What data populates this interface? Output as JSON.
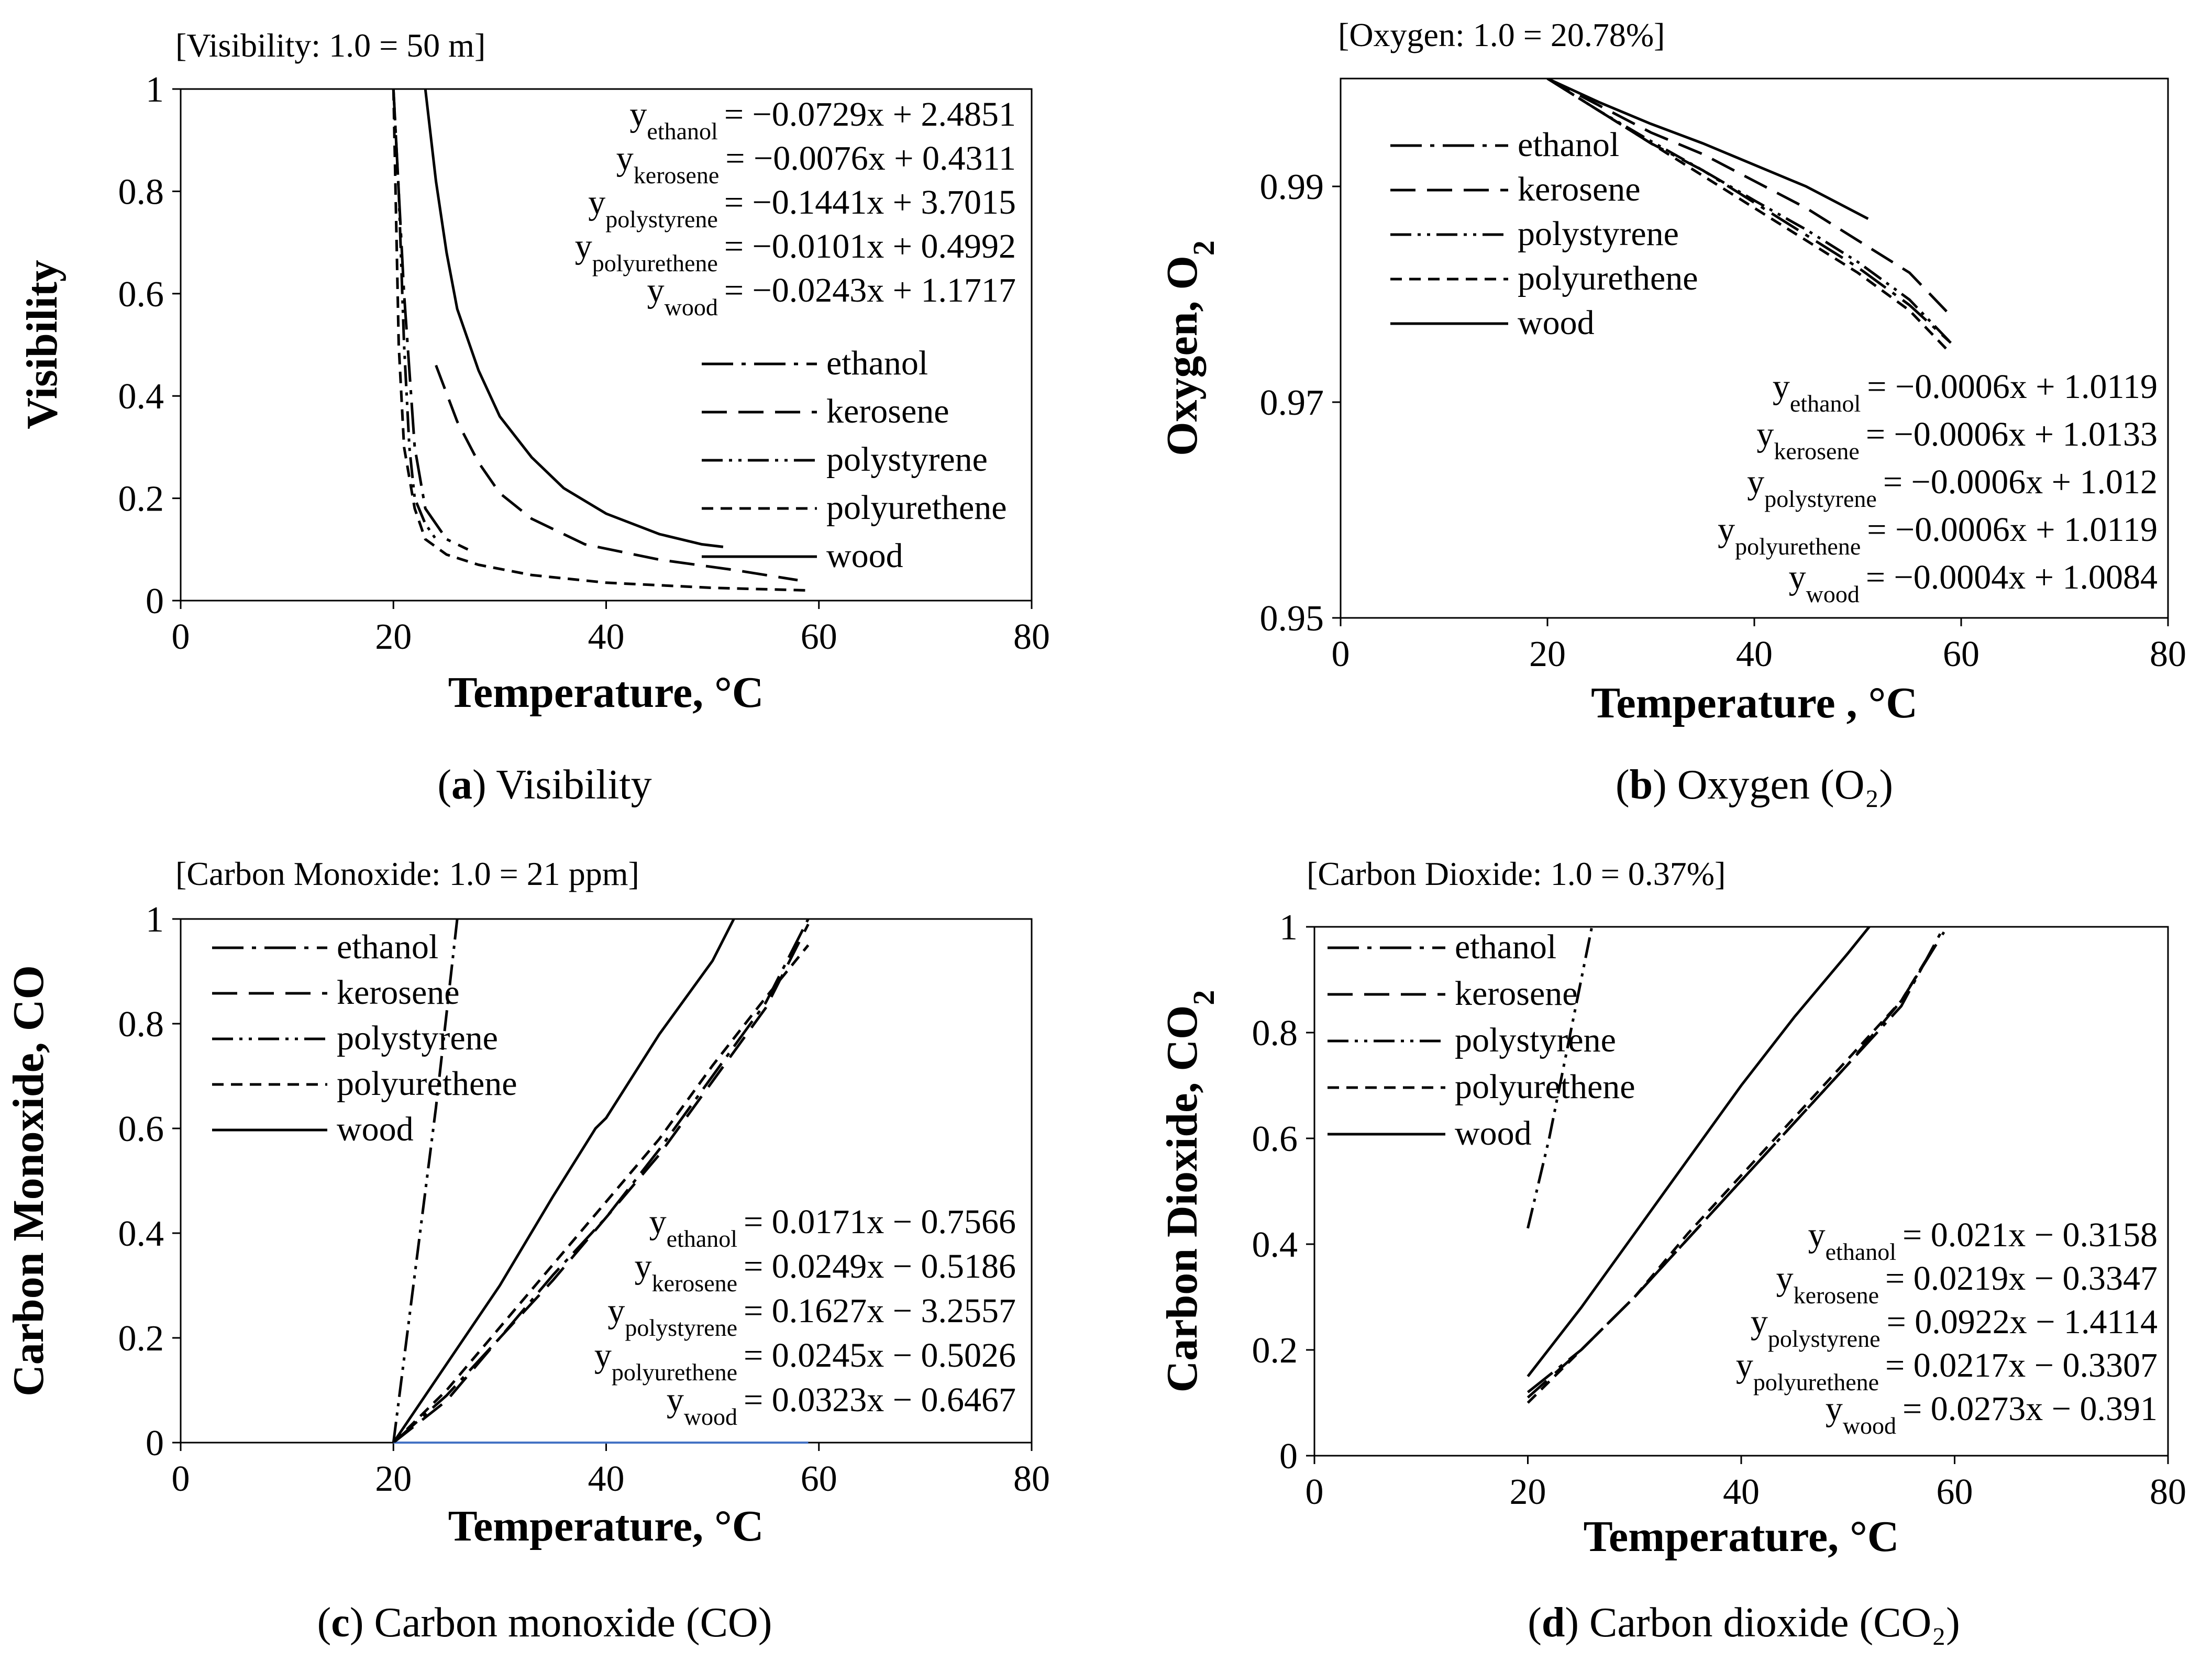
{
  "figure": {
    "panels": [
      {
        "id": "a",
        "note": "[Visibility: 1.0 = 50 m]",
        "caption_letter": "a",
        "caption_text": "Visibility",
        "xlabel": "Temperature, °C",
        "ylabel": "Visibility",
        "legend": [
          "ethanol",
          "kerosene",
          "polystyrene",
          "polyurethene",
          "wood"
        ],
        "equations": [
          {
            "sub": "ethanol",
            "text": "= −0.0729x + 2.4851"
          },
          {
            "sub": "kerosene",
            "text": "= −0.0076x + 0.4311"
          },
          {
            "sub": "polystyrene",
            "text": "= −0.1441x + 3.7015"
          },
          {
            "sub": "polyurethene",
            "text": "= −0.0101x + 0.4992"
          },
          {
            "sub": "wood",
            "text": "= −0.0243x + 1.1717"
          }
        ]
      },
      {
        "id": "b",
        "note": "[Oxygen: 1.0 = 20.78%]",
        "caption_letter": "b",
        "caption_text": "Oxygen (O₂)",
        "xlabel": "Temperature , °C",
        "ylabel": "Oxygen, O",
        "ylabel_sub": "2",
        "legend": [
          "ethanol",
          "kerosene",
          "polystyrene",
          "polyurethene",
          "wood"
        ],
        "equations": [
          {
            "sub": "ethanol",
            "text": "= −0.0006x + 1.0119"
          },
          {
            "sub": "kerosene",
            "text": "= −0.0006x + 1.0133"
          },
          {
            "sub": "polystyrene",
            "text": "= −0.0006x + 1.012"
          },
          {
            "sub": "polyurethene",
            "text": "= −0.0006x + 1.0119"
          },
          {
            "sub": "wood",
            "text": "= −0.0004x + 1.0084"
          }
        ]
      },
      {
        "id": "c",
        "note": "[Carbon Monoxide: 1.0 = 21 ppm]",
        "caption_letter": "c",
        "caption_text": "Carbon monoxide (CO)",
        "xlabel": "Temperature, °C",
        "ylabel": "Carbon Monoxide, CO",
        "legend": [
          "ethanol",
          "kerosene",
          "polystyrene",
          "polyurethene",
          "wood"
        ],
        "equations": [
          {
            "sub": "ethanol",
            "text": "= 0.0171x − 0.7566"
          },
          {
            "sub": "kerosene",
            "text": "= 0.0249x − 0.5186"
          },
          {
            "sub": "polystyrene",
            "text": "= 0.1627x − 3.2557"
          },
          {
            "sub": "polyurethene",
            "text": "= 0.0245x − 0.5026"
          },
          {
            "sub": "wood",
            "text": "= 0.0323x − 0.6467"
          }
        ]
      },
      {
        "id": "d",
        "note": "[Carbon Dioxide: 1.0 = 0.37%]",
        "caption_letter": "d",
        "caption_text": "Carbon dioxide (CO₂)",
        "xlabel": "Temperature, °C",
        "ylabel": "Carbon Dioxide, CO",
        "ylabel_sub": "2",
        "legend": [
          "ethanol",
          "kerosene",
          "polystyrene",
          "polyurethene",
          "wood"
        ],
        "equations": [
          {
            "sub": "ethanol",
            "text": "= 0.021x − 0.3158"
          },
          {
            "sub": "kerosene",
            "text": "= 0.0219x − 0.3347"
          },
          {
            "sub": "polystyrene",
            "text": "= 0.0922x − 1.4114"
          },
          {
            "sub": "polyurethene",
            "text": "= 0.0217x − 0.3307"
          },
          {
            "sub": "wood",
            "text": "= 0.0273x − 0.391"
          }
        ]
      }
    ]
  },
  "chart_data": [
    {
      "type": "line",
      "panel": "a",
      "xlim": [
        0,
        80
      ],
      "ylim": [
        0,
        1
      ],
      "xticks": [
        "0",
        "20",
        "40",
        "60",
        "80"
      ],
      "yticks": [
        "0",
        "0.2",
        "0.4",
        "0.6",
        "0.8",
        "1"
      ],
      "series": [
        {
          "name": "ethanol",
          "points": [
            [
              20,
              1
            ],
            [
              21,
              0.6
            ],
            [
              22,
              0.3
            ],
            [
              23,
              0.18
            ],
            [
              25,
              0.12
            ],
            [
              27,
              0.1
            ]
          ]
        },
        {
          "name": "kerosene",
          "points": [
            [
              24,
              0.46
            ],
            [
              26,
              0.35
            ],
            [
              28,
              0.27
            ],
            [
              30,
              0.21
            ],
            [
              33,
              0.16
            ],
            [
              38,
              0.11
            ],
            [
              45,
              0.08
            ],
            [
              52,
              0.06
            ],
            [
              58,
              0.04
            ]
          ]
        },
        {
          "name": "polystyrene",
          "points": [
            [
              20,
              1
            ],
            [
              20.5,
              0.8
            ],
            [
              21,
              0.5
            ],
            [
              21.5,
              0.3
            ],
            [
              22,
              0.2
            ],
            [
              23,
              0.15
            ],
            [
              24,
              0.12
            ]
          ]
        },
        {
          "name": "polyurethene",
          "points": [
            [
              20,
              1
            ],
            [
              20.5,
              0.5
            ],
            [
              21,
              0.3
            ],
            [
              22,
              0.18
            ],
            [
              23,
              0.12
            ],
            [
              25,
              0.09
            ],
            [
              28,
              0.07
            ],
            [
              33,
              0.05
            ],
            [
              40,
              0.035
            ],
            [
              50,
              0.025
            ],
            [
              59,
              0.02
            ]
          ]
        },
        {
          "name": "wood",
          "points": [
            [
              23,
              1
            ],
            [
              24,
              0.82
            ],
            [
              25,
              0.68
            ],
            [
              26,
              0.57
            ],
            [
              28,
              0.45
            ],
            [
              30,
              0.36
            ],
            [
              33,
              0.28
            ],
            [
              36,
              0.22
            ],
            [
              40,
              0.17
            ],
            [
              45,
              0.13
            ],
            [
              49,
              0.11
            ],
            [
              51,
              0.105
            ]
          ]
        }
      ]
    },
    {
      "type": "line",
      "panel": "b",
      "xlim": [
        0,
        80
      ],
      "ylim": [
        0.95,
        1.0
      ],
      "xticks": [
        "0",
        "20",
        "40",
        "60",
        "80"
      ],
      "yticks": [
        "0.95",
        "0.97",
        "0.99"
      ],
      "series": [
        {
          "name": "ethanol",
          "points": [
            [
              20,
              1.0
            ],
            [
              25,
              0.997
            ],
            [
              30,
              0.994
            ],
            [
              35,
              0.9915
            ],
            [
              40,
              0.9885
            ],
            [
              45,
              0.9855
            ],
            [
              50,
              0.9825
            ],
            [
              55,
              0.979
            ],
            [
              59,
              0.9755
            ]
          ]
        },
        {
          "name": "kerosene",
          "points": [
            [
              20,
              1.0
            ],
            [
              25,
              0.9975
            ],
            [
              30,
              0.995
            ],
            [
              35,
              0.993
            ],
            [
              40,
              0.9905
            ],
            [
              45,
              0.988
            ],
            [
              50,
              0.985
            ],
            [
              55,
              0.982
            ],
            [
              59,
              0.978
            ]
          ]
        },
        {
          "name": "polystyrene",
          "points": [
            [
              20,
              1.0
            ],
            [
              25,
              0.997
            ],
            [
              30,
              0.9942
            ],
            [
              35,
              0.9915
            ],
            [
              40,
              0.9887
            ],
            [
              45,
              0.986
            ],
            [
              50,
              0.983
            ],
            [
              55,
              0.9795
            ],
            [
              59,
              0.9755
            ]
          ]
        },
        {
          "name": "polyurethene",
          "points": [
            [
              20,
              1.0
            ],
            [
              25,
              0.997
            ],
            [
              30,
              0.994
            ],
            [
              35,
              0.991
            ],
            [
              40,
              0.988
            ],
            [
              45,
              0.985
            ],
            [
              50,
              0.982
            ],
            [
              55,
              0.9785
            ],
            [
              59,
              0.9745
            ]
          ]
        },
        {
          "name": "wood",
          "points": [
            [
              20,
              1.0
            ],
            [
              25,
              0.9978
            ],
            [
              30,
              0.9958
            ],
            [
              35,
              0.994
            ],
            [
              40,
              0.992
            ],
            [
              45,
              0.99
            ],
            [
              51,
              0.987
            ]
          ]
        }
      ]
    },
    {
      "type": "line",
      "panel": "c",
      "xlim": [
        0,
        80
      ],
      "ylim": [
        0,
        1
      ],
      "xticks": [
        "0",
        "20",
        "40",
        "60",
        "80"
      ],
      "yticks": [
        "0",
        "0.2",
        "0.4",
        "0.6",
        "0.8",
        "1"
      ],
      "series": [
        {
          "name": "ethanol",
          "points": [
            [
              20,
              0
            ],
            [
              25,
              0.09
            ],
            [
              30,
              0.2
            ],
            [
              35,
              0.32
            ],
            [
              40,
              0.43
            ],
            [
              45,
              0.56
            ],
            [
              50,
              0.7
            ],
            [
              55,
              0.84
            ],
            [
              59,
              1.0
            ]
          ]
        },
        {
          "name": "kerosene",
          "points": [
            [
              20,
              0
            ],
            [
              25,
              0.08
            ],
            [
              30,
              0.2
            ],
            [
              35,
              0.31
            ],
            [
              40,
              0.43
            ],
            [
              45,
              0.55
            ],
            [
              50,
              0.69
            ],
            [
              55,
              0.83
            ],
            [
              59,
              0.99
            ]
          ]
        },
        {
          "name": "polystyrene",
          "points": [
            [
              20,
              0
            ],
            [
              22,
              0.32
            ],
            [
              24,
              0.64
            ],
            [
              26,
              1.0
            ]
          ]
        },
        {
          "name": "polyurethene",
          "points": [
            [
              20,
              0
            ],
            [
              25,
              0.1
            ],
            [
              30,
              0.22
            ],
            [
              35,
              0.34
            ],
            [
              40,
              0.46
            ],
            [
              45,
              0.58
            ],
            [
              50,
              0.72
            ],
            [
              55,
              0.85
            ],
            [
              59,
              0.95
            ]
          ]
        },
        {
          "name": "wood",
          "points": [
            [
              20,
              0
            ],
            [
              25,
              0.15
            ],
            [
              30,
              0.3
            ],
            [
              35,
              0.47
            ],
            [
              39,
              0.6
            ],
            [
              40,
              0.62
            ],
            [
              45,
              0.78
            ],
            [
              50,
              0.92
            ],
            [
              52,
              1.0
            ]
          ]
        }
      ]
    },
    {
      "type": "line",
      "panel": "d",
      "xlim": [
        0,
        80
      ],
      "ylim": [
        0,
        1
      ],
      "xticks": [
        "0",
        "20",
        "40",
        "60",
        "80"
      ],
      "yticks": [
        "0",
        "0.2",
        "0.4",
        "0.6",
        "0.8",
        "1"
      ],
      "series": [
        {
          "name": "ethanol",
          "points": [
            [
              20,
              0.12
            ],
            [
              25,
              0.2
            ],
            [
              30,
              0.3
            ],
            [
              35,
              0.41
            ],
            [
              40,
              0.52
            ],
            [
              45,
              0.63
            ],
            [
              50,
              0.74
            ],
            [
              55,
              0.85
            ],
            [
              59,
              1.0
            ]
          ]
        },
        {
          "name": "kerosene",
          "points": [
            [
              20,
              0.11
            ],
            [
              25,
              0.2
            ],
            [
              30,
              0.3
            ],
            [
              35,
              0.41
            ],
            [
              40,
              0.52
            ],
            [
              45,
              0.63
            ],
            [
              50,
              0.74
            ],
            [
              55,
              0.86
            ],
            [
              59,
              0.99
            ]
          ]
        },
        {
          "name": "polystyrene",
          "points": [
            [
              20,
              0.43
            ],
            [
              22,
              0.6
            ],
            [
              24,
              0.8
            ],
            [
              26,
              1.0
            ]
          ]
        },
        {
          "name": "polyurethene",
          "points": [
            [
              20,
              0.1
            ],
            [
              25,
              0.2
            ],
            [
              30,
              0.3
            ],
            [
              35,
              0.42
            ],
            [
              40,
              0.53
            ],
            [
              45,
              0.64
            ],
            [
              50,
              0.75
            ],
            [
              55,
              0.86
            ],
            [
              58,
              0.96
            ]
          ]
        },
        {
          "name": "wood",
          "points": [
            [
              20,
              0.15
            ],
            [
              25,
              0.28
            ],
            [
              30,
              0.42
            ],
            [
              35,
              0.56
            ],
            [
              40,
              0.7
            ],
            [
              45,
              0.83
            ],
            [
              50,
              0.95
            ],
            [
              52,
              1.0
            ]
          ]
        }
      ]
    }
  ]
}
